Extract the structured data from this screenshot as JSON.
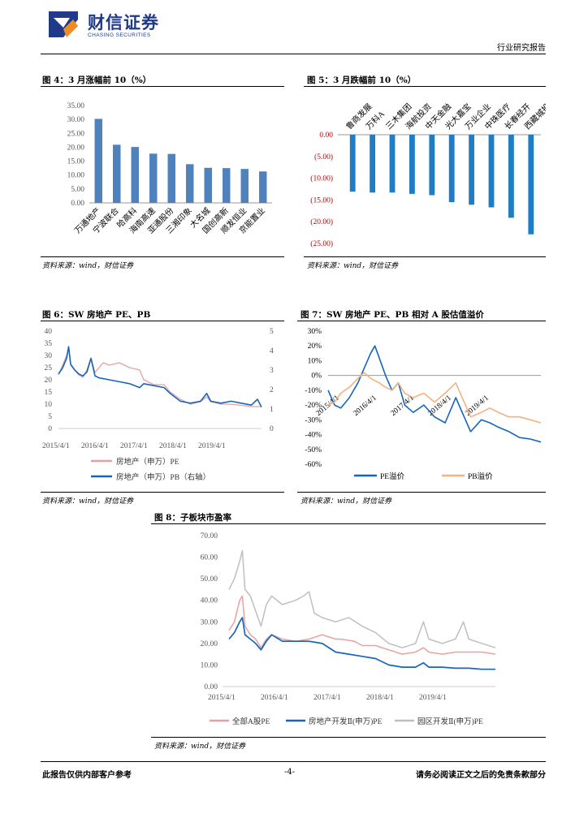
{
  "header": {
    "company_name": "财信证券",
    "company_name_en": "CHASING SECURITIES",
    "report_type": "行业研究报告"
  },
  "colors": {
    "bar_blue": "#4F81BD",
    "bar_blue_dark": "#1F7DC6",
    "pink": "#E8A0A0",
    "navy": "#1565C0",
    "orange": "#F4B183",
    "grey": "#BFBFBF",
    "red_tick": "#C00000"
  },
  "figures": {
    "fig4": {
      "title": "图 4：3 月涨幅前 10（%）",
      "source": "资料来源：wind，财信证券"
    },
    "fig5": {
      "title": "图 5：3 月跌幅前 10（%）",
      "source": "资料来源：wind，财信证券"
    },
    "fig6": {
      "title": "图 6：SW 房地产 PE、PB",
      "source": "资料来源：wind，财信证券"
    },
    "fig7": {
      "title": "图 7：SW 房地产 PE、PB 相对 A 股估值溢价",
      "source": "资料来源：wind，财信证券"
    },
    "fig8": {
      "title": "图 8：子板块市盈率",
      "source": "资料来源：wind，财信证券"
    }
  },
  "chart_data": [
    {
      "id": "fig4",
      "type": "bar",
      "categories": [
        "万通地产",
        "宁波联合",
        "哈高科",
        "海南高速",
        "亚通股份",
        "三湘印象",
        "大名城",
        "国创高新",
        "顺发恒业",
        "京能置业"
      ],
      "values": [
        30.2,
        20.9,
        20.1,
        17.7,
        17.6,
        13.9,
        12.6,
        12.5,
        12.2,
        11.3
      ],
      "ylim": [
        0,
        35
      ],
      "y_ticks": [
        "35.00",
        "30.00",
        "25.00",
        "20.00",
        "15.00",
        "10.00",
        "5.00",
        "0.00"
      ]
    },
    {
      "id": "fig5",
      "type": "bar",
      "categories": [
        "鲁商发展",
        "万科A",
        "三木集团",
        "海航投资",
        "中天金融",
        "光大嘉宝",
        "万业企业",
        "中珠医疗",
        "长春经开",
        "西藏城投"
      ],
      "values": [
        -13.1,
        -13.3,
        -13.3,
        -13.6,
        -13.9,
        -15.5,
        -16.1,
        -16.7,
        -19.1,
        -22.9
      ],
      "ylim": [
        -25,
        0
      ],
      "y_ticks": [
        "0.00",
        "(5.00)",
        "(10.00)",
        "(15.00)",
        "(20.00)",
        "(25.00)"
      ]
    },
    {
      "id": "fig6",
      "type": "line",
      "x_ticks": [
        "2015/4/1",
        "2016/4/1",
        "2017/4/1",
        "2018/4/1",
        "2019/4/1"
      ],
      "y_ticks_left": [
        "40",
        "35",
        "30",
        "25",
        "20",
        "15",
        "10",
        "5",
        "0"
      ],
      "y_ticks_right": [
        "5",
        "4",
        "3",
        "2",
        "1",
        "0"
      ],
      "ylim_left": [
        0,
        40
      ],
      "ylim_right": [
        0,
        5
      ],
      "series": [
        {
          "name": "房地产（申万）PE",
          "axis": "left",
          "values": [
            [
              0,
              22
            ],
            [
              0.02,
              26
            ],
            [
              0.04,
              30
            ],
            [
              0.05,
              33
            ],
            [
              0.06,
              26
            ],
            [
              0.08,
              24
            ],
            [
              0.1,
              22
            ],
            [
              0.12,
              21
            ],
            [
              0.14,
              24
            ],
            [
              0.16,
              29
            ],
            [
              0.18,
              23
            ],
            [
              0.2,
              25
            ],
            [
              0.22,
              27
            ],
            [
              0.25,
              26
            ],
            [
              0.3,
              27
            ],
            [
              0.35,
              25
            ],
            [
              0.4,
              24
            ],
            [
              0.42,
              20
            ],
            [
              0.47,
              18
            ],
            [
              0.52,
              18
            ],
            [
              0.55,
              15
            ],
            [
              0.6,
              12
            ],
            [
              0.65,
              10
            ],
            [
              0.7,
              11
            ],
            [
              0.73,
              13
            ],
            [
              0.75,
              11
            ],
            [
              0.8,
              10
            ],
            [
              0.85,
              10
            ],
            [
              0.9,
              9.5
            ],
            [
              0.95,
              9
            ],
            [
              1.0,
              9
            ]
          ]
        },
        {
          "name": "房地产（申万）PB（右轴）",
          "axis": "right",
          "values": [
            [
              0,
              2.8
            ],
            [
              0.02,
              3.1
            ],
            [
              0.04,
              3.6
            ],
            [
              0.05,
              4.2
            ],
            [
              0.06,
              3.3
            ],
            [
              0.08,
              3.0
            ],
            [
              0.1,
              2.8
            ],
            [
              0.12,
              2.7
            ],
            [
              0.14,
              2.9
            ],
            [
              0.16,
              3.6
            ],
            [
              0.18,
              2.7
            ],
            [
              0.2,
              2.6
            ],
            [
              0.25,
              2.5
            ],
            [
              0.3,
              2.4
            ],
            [
              0.35,
              2.3
            ],
            [
              0.4,
              2.1
            ],
            [
              0.42,
              2.3
            ],
            [
              0.47,
              2.2
            ],
            [
              0.52,
              2.1
            ],
            [
              0.55,
              1.8
            ],
            [
              0.6,
              1.4
            ],
            [
              0.65,
              1.3
            ],
            [
              0.7,
              1.4
            ],
            [
              0.73,
              1.8
            ],
            [
              0.75,
              1.4
            ],
            [
              0.8,
              1.3
            ],
            [
              0.85,
              1.4
            ],
            [
              0.9,
              1.3
            ],
            [
              0.95,
              1.2
            ],
            [
              0.98,
              1.5
            ],
            [
              1.0,
              1.1
            ]
          ]
        }
      ]
    },
    {
      "id": "fig7",
      "type": "line",
      "x_ticks": [
        "2015/4/1",
        "2016/4/1",
        "2017/4/1",
        "2018/4/1",
        "2019/4/1"
      ],
      "y_ticks": [
        "30%",
        "20%",
        "10%",
        "0%",
        "-10%",
        "-20%",
        "-30%",
        "-40%",
        "-50%",
        "-60%"
      ],
      "ylim": [
        -60,
        30
      ],
      "series": [
        {
          "name": "PE溢价",
          "values": [
            [
              0,
              -10
            ],
            [
              0.03,
              -20
            ],
            [
              0.06,
              -22
            ],
            [
              0.1,
              -15
            ],
            [
              0.14,
              -5
            ],
            [
              0.17,
              5
            ],
            [
              0.2,
              15
            ],
            [
              0.22,
              20
            ],
            [
              0.24,
              12
            ],
            [
              0.27,
              0
            ],
            [
              0.3,
              -10
            ],
            [
              0.33,
              -5
            ],
            [
              0.36,
              -20
            ],
            [
              0.4,
              -25
            ],
            [
              0.45,
              -20
            ],
            [
              0.5,
              -28
            ],
            [
              0.55,
              -32
            ],
            [
              0.6,
              -15
            ],
            [
              0.63,
              -25
            ],
            [
              0.67,
              -38
            ],
            [
              0.72,
              -30
            ],
            [
              0.76,
              -32
            ],
            [
              0.8,
              -35
            ],
            [
              0.85,
              -38
            ],
            [
              0.9,
              -42
            ],
            [
              0.95,
              -43
            ],
            [
              1.0,
              -45
            ]
          ]
        },
        {
          "name": "PB溢价",
          "values": [
            [
              0,
              -20
            ],
            [
              0.03,
              -18
            ],
            [
              0.06,
              -12
            ],
            [
              0.1,
              -8
            ],
            [
              0.14,
              -2
            ],
            [
              0.17,
              2
            ],
            [
              0.2,
              -2
            ],
            [
              0.24,
              -5
            ],
            [
              0.27,
              -8
            ],
            [
              0.3,
              -10
            ],
            [
              0.33,
              -5
            ],
            [
              0.36,
              -12
            ],
            [
              0.4,
              -15
            ],
            [
              0.45,
              -12
            ],
            [
              0.5,
              -18
            ],
            [
              0.55,
              -12
            ],
            [
              0.6,
              -5
            ],
            [
              0.63,
              -15
            ],
            [
              0.67,
              -28
            ],
            [
              0.72,
              -25
            ],
            [
              0.76,
              -22
            ],
            [
              0.8,
              -25
            ],
            [
              0.85,
              -28
            ],
            [
              0.9,
              -28
            ],
            [
              0.95,
              -30
            ],
            [
              1.0,
              -32
            ]
          ]
        }
      ]
    },
    {
      "id": "fig8",
      "type": "line",
      "x_ticks": [
        "2015/4/1",
        "2016/4/1",
        "2017/4/1",
        "2018/4/1",
        "2019/4/1"
      ],
      "y_ticks": [
        "70.00",
        "60.00",
        "50.00",
        "40.00",
        "30.00",
        "20.00",
        "10.00",
        "0.00"
      ],
      "ylim": [
        0,
        70
      ],
      "series": [
        {
          "name": "全部A股PE",
          "values": [
            [
              0,
              26
            ],
            [
              0.02,
              30
            ],
            [
              0.04,
              40
            ],
            [
              0.05,
              42
            ],
            [
              0.06,
              28
            ],
            [
              0.08,
              24
            ],
            [
              0.1,
              22
            ],
            [
              0.12,
              18
            ],
            [
              0.14,
              22
            ],
            [
              0.16,
              24
            ],
            [
              0.2,
              22
            ],
            [
              0.25,
              21
            ],
            [
              0.3,
              22
            ],
            [
              0.35,
              24
            ],
            [
              0.4,
              22
            ],
            [
              0.42,
              22
            ],
            [
              0.47,
              21
            ],
            [
              0.5,
              19
            ],
            [
              0.55,
              19
            ],
            [
              0.6,
              17
            ],
            [
              0.65,
              15
            ],
            [
              0.7,
              16
            ],
            [
              0.73,
              18
            ],
            [
              0.75,
              16
            ],
            [
              0.8,
              15
            ],
            [
              0.85,
              16
            ],
            [
              0.9,
              16
            ],
            [
              0.95,
              16
            ],
            [
              1.0,
              15
            ]
          ]
        },
        {
          "name": "房地产开发Ⅱ(申万)PE",
          "values": [
            [
              0,
              22
            ],
            [
              0.02,
              25
            ],
            [
              0.04,
              30
            ],
            [
              0.05,
              32
            ],
            [
              0.06,
              24
            ],
            [
              0.08,
              22
            ],
            [
              0.1,
              20
            ],
            [
              0.12,
              17
            ],
            [
              0.14,
              21
            ],
            [
              0.16,
              24
            ],
            [
              0.2,
              21
            ],
            [
              0.25,
              21
            ],
            [
              0.3,
              21
            ],
            [
              0.35,
              20
            ],
            [
              0.4,
              16
            ],
            [
              0.45,
              15
            ],
            [
              0.5,
              14
            ],
            [
              0.55,
              13
            ],
            [
              0.6,
              10
            ],
            [
              0.65,
              9
            ],
            [
              0.7,
              9
            ],
            [
              0.73,
              11
            ],
            [
              0.75,
              9
            ],
            [
              0.8,
              9
            ],
            [
              0.85,
              8.5
            ],
            [
              0.9,
              8.5
            ],
            [
              0.95,
              8
            ],
            [
              1.0,
              8
            ]
          ]
        },
        {
          "name": "园区开发Ⅱ(申万)PE",
          "values": [
            [
              0,
              45
            ],
            [
              0.02,
              50
            ],
            [
              0.04,
              58
            ],
            [
              0.05,
              63
            ],
            [
              0.06,
              45
            ],
            [
              0.08,
              42
            ],
            [
              0.1,
              35
            ],
            [
              0.12,
              28
            ],
            [
              0.14,
              38
            ],
            [
              0.16,
              42
            ],
            [
              0.2,
              38
            ],
            [
              0.25,
              40
            ],
            [
              0.28,
              42
            ],
            [
              0.3,
              44
            ],
            [
              0.32,
              34
            ],
            [
              0.35,
              32
            ],
            [
              0.4,
              30
            ],
            [
              0.45,
              32
            ],
            [
              0.5,
              28
            ],
            [
              0.55,
              25
            ],
            [
              0.6,
              20
            ],
            [
              0.65,
              18
            ],
            [
              0.7,
              20
            ],
            [
              0.73,
              30
            ],
            [
              0.75,
              22
            ],
            [
              0.8,
              20
            ],
            [
              0.85,
              22
            ],
            [
              0.88,
              30
            ],
            [
              0.9,
              22
            ],
            [
              0.95,
              20
            ],
            [
              1.0,
              18
            ]
          ]
        }
      ]
    }
  ],
  "footer": {
    "left": "此报告仅供内部客户参考",
    "page": "-4-",
    "right": "请务必阅读正文之后的免责条款部分"
  }
}
